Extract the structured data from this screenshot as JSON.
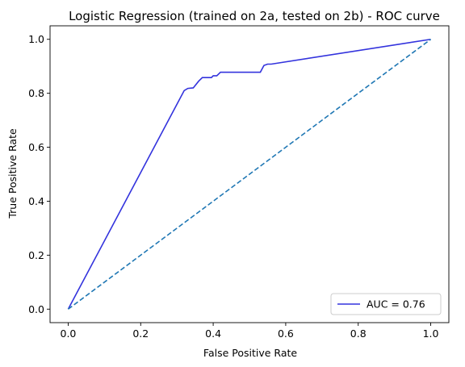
{
  "chart_data": {
    "type": "line",
    "title": "Logistic Regression (trained on 2a, tested on 2b) -  ROC curve",
    "xlabel": "False Positive Rate",
    "ylabel": "True Positive Rate",
    "xlim": [
      -0.05,
      1.05
    ],
    "ylim": [
      -0.05,
      1.05
    ],
    "xticks": [
      0.0,
      0.2,
      0.4,
      0.6,
      0.8,
      1.0
    ],
    "xtick_labels": [
      "0.0",
      "0.2",
      "0.4",
      "0.6",
      "0.8",
      "1.0"
    ],
    "yticks": [
      0.0,
      0.2,
      0.4,
      0.6,
      0.8,
      1.0
    ],
    "ytick_labels": [
      "0.0",
      "0.2",
      "0.4",
      "0.6",
      "0.8",
      "1.0"
    ],
    "grid": false,
    "legend_position": "lower-right",
    "series": [
      {
        "name": "AUC = 0.76",
        "color": "#3333dd",
        "style": "solid",
        "x": [
          0.0,
          0.32,
          0.33,
          0.345,
          0.36,
          0.37,
          0.38,
          0.395,
          0.4,
          0.41,
          0.42,
          0.425,
          0.53,
          0.54,
          0.55,
          0.56,
          1.0
        ],
        "y": [
          0.0,
          0.81,
          0.818,
          0.82,
          0.845,
          0.858,
          0.858,
          0.858,
          0.865,
          0.865,
          0.878,
          0.878,
          0.878,
          0.903,
          0.908,
          0.908,
          1.0
        ]
      },
      {
        "name": "",
        "color": "#1f77b4",
        "style": "dashed",
        "x": [
          0.0,
          1.0
        ],
        "y": [
          0.0,
          1.0
        ]
      }
    ]
  }
}
